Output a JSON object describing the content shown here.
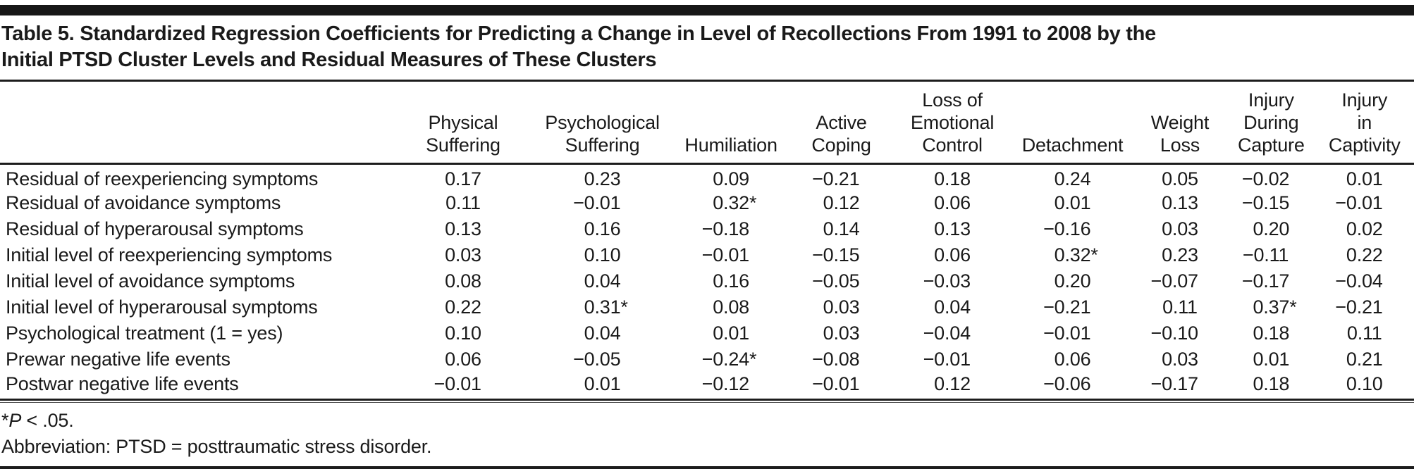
{
  "table": {
    "title_line1": "Table 5. Standardized Regression Coefficients for Predicting a Change in Level of Recollections From 1991 to 2008 by the",
    "title_line2": "Initial PTSD Cluster Levels and Residual Measures of These Clusters",
    "columns": [
      "Physical\nSuffering",
      "Psychological\nSuffering",
      "Humiliation",
      "Active\nCoping",
      "Loss of\nEmotional\nControl",
      "Detachment",
      "Weight\nLoss",
      "Injury\nDuring\nCapture",
      "Injury\nin\nCaptivity"
    ],
    "rows": [
      {
        "label": "Residual of reexperiencing symptoms",
        "values": [
          "0.17",
          "0.23",
          "0.09",
          "−0.21",
          "0.18",
          "0.24",
          "0.05",
          "−0.02",
          "0.01"
        ]
      },
      {
        "label": "Residual of avoidance symptoms",
        "values": [
          "0.11",
          "−0.01",
          "0.32*",
          "0.12",
          "0.06",
          "0.01",
          "0.13",
          "−0.15",
          "−0.01"
        ]
      },
      {
        "label": "Residual of hyperarousal symptoms",
        "values": [
          "0.13",
          "0.16",
          "−0.18",
          "0.14",
          "0.13",
          "−0.16",
          "0.03",
          "0.20",
          "0.02"
        ]
      },
      {
        "label": "Initial level of reexperiencing symptoms",
        "values": [
          "0.03",
          "0.10",
          "−0.01",
          "−0.15",
          "0.06",
          "0.32*",
          "0.23",
          "−0.11",
          "0.22"
        ]
      },
      {
        "label": "Initial level of avoidance symptoms",
        "values": [
          "0.08",
          "0.04",
          "0.16",
          "−0.05",
          "−0.03",
          "0.20",
          "−0.07",
          "−0.17",
          "−0.04"
        ]
      },
      {
        "label": "Initial level of hyperarousal symptoms",
        "values": [
          "0.22",
          "0.31*",
          "0.08",
          "0.03",
          "0.04",
          "−0.21",
          "0.11",
          "0.37*",
          "−0.21"
        ]
      },
      {
        "label": "Psychological treatment (1 = yes)",
        "values": [
          "0.10",
          "0.04",
          "0.01",
          "0.03",
          "−0.04",
          "−0.01",
          "−0.10",
          "0.18",
          "0.11"
        ]
      },
      {
        "label": "Prewar negative life events",
        "values": [
          "0.06",
          "−0.05",
          "−0.24*",
          "−0.08",
          "−0.01",
          "0.06",
          "0.03",
          "0.01",
          "0.21"
        ]
      },
      {
        "label": "Postwar negative life events",
        "values": [
          "−0.01",
          "0.01",
          "−0.12",
          "−0.01",
          "0.12",
          "−0.06",
          "−0.17",
          "0.18",
          "0.10"
        ]
      }
    ],
    "footnotes": {
      "sig_star": "*",
      "sig_p": "P",
      "sig_rest": " < .05.",
      "abbreviation": "Abbreviation: PTSD = posttraumatic stress disorder."
    },
    "colors": {
      "text": "#1a1a1a",
      "rule": "#1c1c1c",
      "background": "#ffffff"
    }
  }
}
